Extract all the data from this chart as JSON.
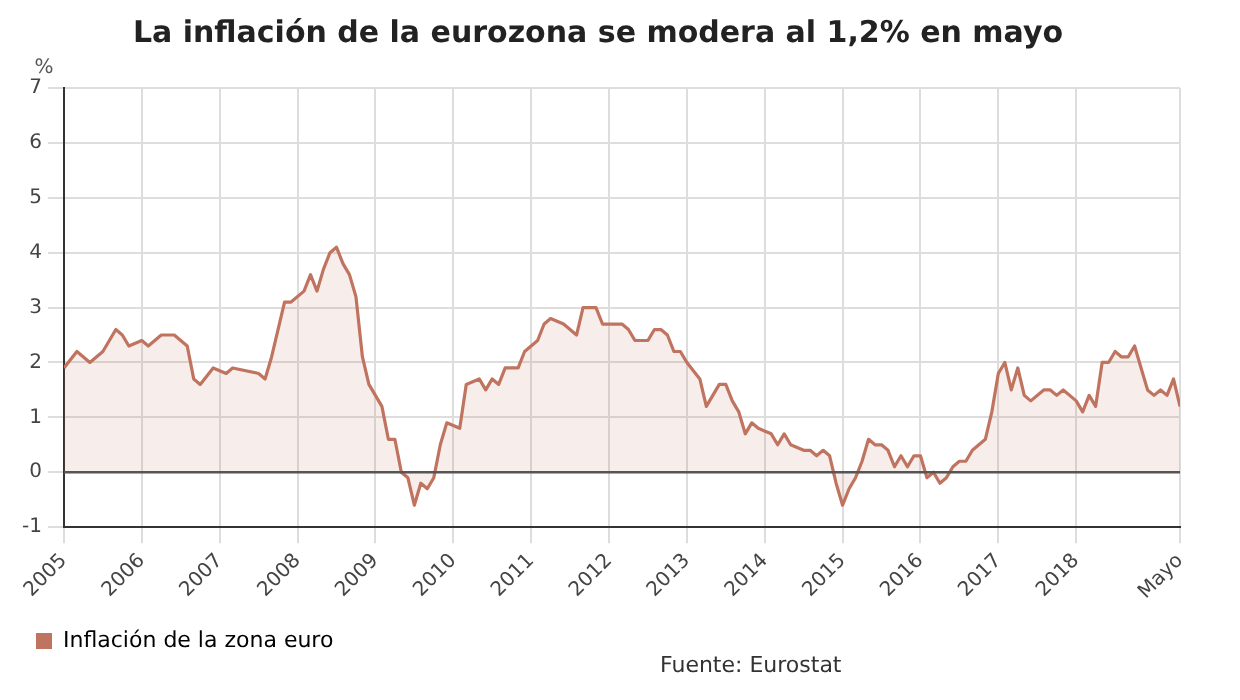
{
  "chart_data": {
    "type": "area",
    "title": "La inflación de la eurozona se modera al 1,2% en mayo",
    "ylabel": "%",
    "x": [
      "2005-01",
      "2005-03",
      "2005-05",
      "2005-07",
      "2005-09",
      "2005-10",
      "2005-11",
      "2006-01",
      "2006-02",
      "2006-04",
      "2006-06",
      "2006-08",
      "2006-09",
      "2006-10",
      "2006-12",
      "2007-02",
      "2007-03",
      "2007-07",
      "2007-08",
      "2007-09",
      "2007-11",
      "2007-12",
      "2008-02",
      "2008-03",
      "2008-04",
      "2008-05",
      "2008-06",
      "2008-07",
      "2008-08",
      "2008-09",
      "2008-10",
      "2008-11",
      "2008-12",
      "2009-02",
      "2009-03",
      "2009-04",
      "2009-05",
      "2009-06",
      "2009-07",
      "2009-08",
      "2009-09",
      "2009-10",
      "2009-11",
      "2009-12",
      "2010-02",
      "2010-03",
      "2010-05",
      "2010-06",
      "2010-07",
      "2010-08",
      "2010-09",
      "2010-11",
      "2010-12",
      "2011-02",
      "2011-03",
      "2011-04",
      "2011-06",
      "2011-07",
      "2011-08",
      "2011-09",
      "2011-11",
      "2011-12",
      "2012-02",
      "2012-03",
      "2012-04",
      "2012-05",
      "2012-07",
      "2012-08",
      "2012-09",
      "2012-10",
      "2012-11",
      "2012-12",
      "2013-01",
      "2013-03",
      "2013-04",
      "2013-05",
      "2013-06",
      "2013-07",
      "2013-08",
      "2013-09",
      "2013-10",
      "2013-11",
      "2013-12",
      "2014-02",
      "2014-03",
      "2014-04",
      "2014-05",
      "2014-07",
      "2014-08",
      "2014-09",
      "2014-10",
      "2014-11",
      "2014-12",
      "2015-01",
      "2015-02",
      "2015-03",
      "2015-04",
      "2015-05",
      "2015-06",
      "2015-07",
      "2015-08",
      "2015-09",
      "2015-10",
      "2015-11",
      "2015-12",
      "2016-01",
      "2016-02",
      "2016-03",
      "2016-04",
      "2016-05",
      "2016-06",
      "2016-07",
      "2016-08",
      "2016-09",
      "2016-10",
      "2016-11",
      "2016-12",
      "2017-01",
      "2017-02",
      "2017-03",
      "2017-04",
      "2017-05",
      "2017-06",
      "2017-08",
      "2017-09",
      "2017-10",
      "2017-11",
      "2017-12",
      "2018-01",
      "2018-02",
      "2018-03",
      "2018-04",
      "2018-05",
      "2018-06",
      "2018-07",
      "2018-08",
      "2018-09",
      "2018-10",
      "2018-11",
      "2018-12",
      "2019-01",
      "2019-02",
      "2019-03",
      "2019-04",
      "2019-05"
    ],
    "series": [
      {
        "name": "Inflación de la zona euro",
        "color": "#c0735f",
        "values": [
          1.9,
          2.2,
          2.0,
          2.2,
          2.6,
          2.5,
          2.3,
          2.4,
          2.3,
          2.5,
          2.5,
          2.3,
          1.7,
          1.6,
          1.9,
          1.8,
          1.9,
          1.8,
          1.7,
          2.1,
          3.1,
          3.1,
          3.3,
          3.6,
          3.3,
          3.7,
          4.0,
          4.1,
          3.8,
          3.6,
          3.2,
          2.1,
          1.6,
          1.2,
          0.6,
          0.6,
          0.0,
          -0.1,
          -0.6,
          -0.2,
          -0.3,
          -0.1,
          0.5,
          0.9,
          0.8,
          1.6,
          1.7,
          1.5,
          1.7,
          1.6,
          1.9,
          1.9,
          2.2,
          2.4,
          2.7,
          2.8,
          2.7,
          2.6,
          2.5,
          3.0,
          3.0,
          2.7,
          2.7,
          2.7,
          2.6,
          2.4,
          2.4,
          2.6,
          2.6,
          2.5,
          2.2,
          2.2,
          2.0,
          1.7,
          1.2,
          1.4,
          1.6,
          1.6,
          1.3,
          1.1,
          0.7,
          0.9,
          0.8,
          0.7,
          0.5,
          0.7,
          0.5,
          0.4,
          0.4,
          0.3,
          0.4,
          0.3,
          -0.2,
          -0.6,
          -0.3,
          -0.1,
          0.2,
          0.6,
          0.5,
          0.5,
          0.4,
          0.1,
          0.3,
          0.1,
          0.3,
          0.3,
          -0.1,
          0.0,
          -0.2,
          -0.1,
          0.1,
          0.2,
          0.2,
          0.4,
          0.5,
          0.6,
          1.1,
          1.8,
          2.0,
          1.5,
          1.9,
          1.4,
          1.3,
          1.5,
          1.5,
          1.4,
          1.5,
          1.4,
          1.3,
          1.1,
          1.4,
          1.2,
          2.0,
          2.0,
          2.2,
          2.1,
          2.1,
          2.3,
          1.9,
          1.5,
          1.4,
          1.5,
          1.4,
          1.7,
          1.2
        ]
      }
    ],
    "xlim": [
      "2005-01",
      "2019-05"
    ],
    "xticks": [
      {
        "value": "2005-01",
        "label": "2005"
      },
      {
        "value": "2006-01",
        "label": "2006"
      },
      {
        "value": "2007-01",
        "label": "2007"
      },
      {
        "value": "2008-01",
        "label": "2008"
      },
      {
        "value": "2009-01",
        "label": "2009"
      },
      {
        "value": "2010-01",
        "label": "2010"
      },
      {
        "value": "2011-01",
        "label": "2011"
      },
      {
        "value": "2012-01",
        "label": "2012"
      },
      {
        "value": "2013-01",
        "label": "2013"
      },
      {
        "value": "2014-01",
        "label": "2014"
      },
      {
        "value": "2015-01",
        "label": "2015"
      },
      {
        "value": "2016-01",
        "label": "2016"
      },
      {
        "value": "2017-01",
        "label": "2017"
      },
      {
        "value": "2018-01",
        "label": "2018"
      },
      {
        "value": "2019-05",
        "label": "Mayo"
      }
    ],
    "ylim": [
      -1,
      7
    ],
    "yticks": [
      -1,
      0,
      1,
      2,
      3,
      4,
      5,
      6,
      7
    ],
    "ref_lines": [
      {
        "axis": "y",
        "value": 0,
        "color": "#555555"
      }
    ],
    "grid": true,
    "legend": "bottom",
    "marker": "none",
    "line_style": "solid",
    "annotations": [
      "Fuente: Eurostat"
    ]
  }
}
